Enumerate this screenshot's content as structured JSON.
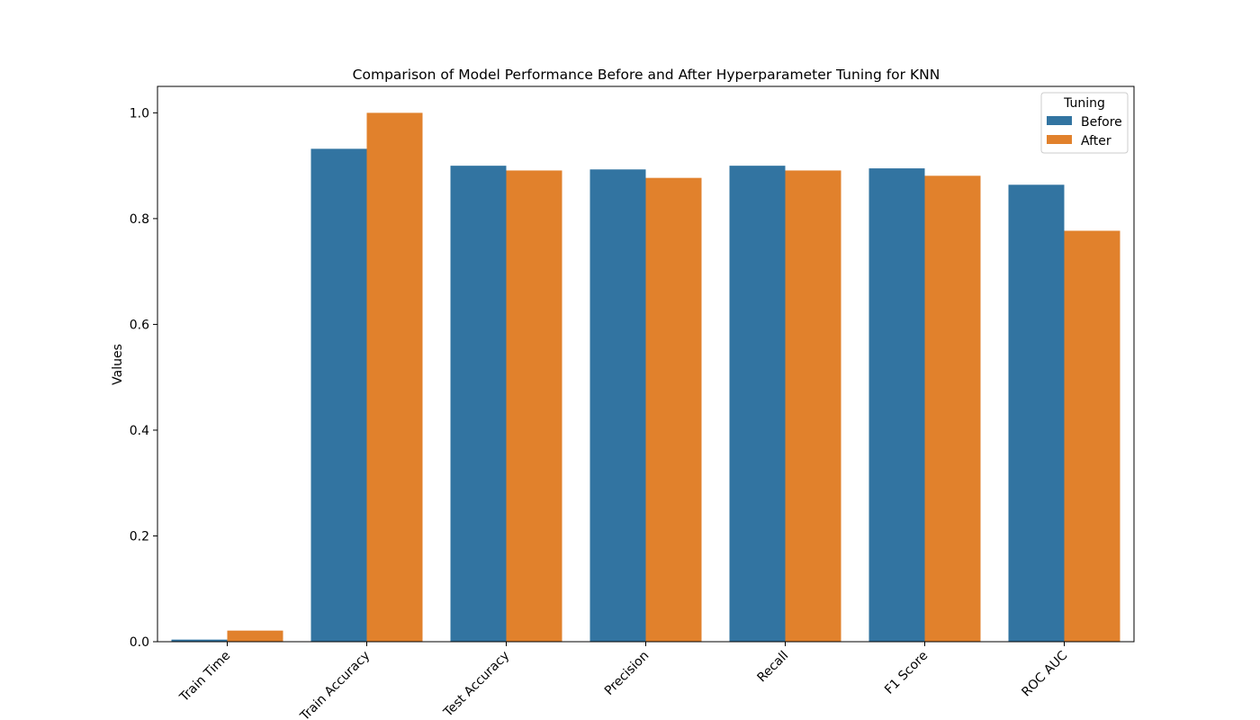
{
  "chart_data": {
    "type": "bar",
    "title": "Comparison of Model Performance Before and After Hyperparameter Tuning for KNN",
    "xlabel": "",
    "ylabel": "Values",
    "categories": [
      "Train Time",
      "Train Accuracy",
      "Test Accuracy",
      "Precision",
      "Recall",
      "F1 Score",
      "ROC AUC"
    ],
    "series": [
      {
        "name": "Before",
        "color": "#3274a1",
        "values": [
          0.004,
          0.932,
          0.9,
          0.893,
          0.9,
          0.895,
          0.864
        ]
      },
      {
        "name": "After",
        "color": "#e1812c",
        "values": [
          0.021,
          1.0,
          0.891,
          0.877,
          0.891,
          0.881,
          0.777
        ]
      }
    ],
    "ylim": [
      0,
      1.05
    ],
    "yticks": [
      "0.0",
      "0.2",
      "0.4",
      "0.6",
      "0.8",
      "1.0"
    ],
    "grid": false,
    "legend": {
      "title": "Tuning",
      "placement": "top-right"
    }
  }
}
